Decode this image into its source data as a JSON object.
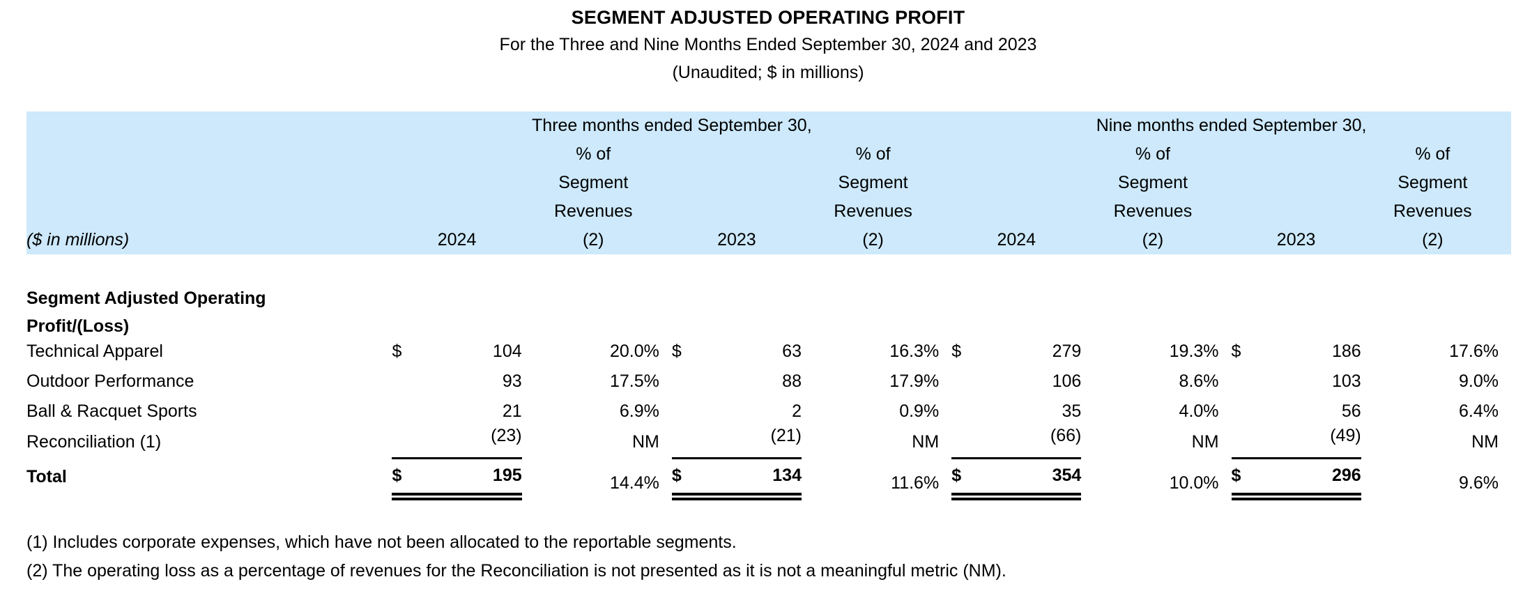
{
  "page": {
    "title": "SEGMENT ADJUSTED OPERATING PROFIT",
    "subtitle": "For the Three and Nine Months Ended September 30, 2024 and 2023",
    "note": "(Unaudited; $ in millions)"
  },
  "colors": {
    "header_band_bg": "#cde9fb",
    "text": "#000000"
  },
  "table": {
    "corner_label": "($ in millions)",
    "dollar_sign": "$",
    "group_headers": [
      "Three months ended September 30,",
      "Nine months ended September 30,"
    ],
    "pct_header_lines": [
      "% of",
      "Segment",
      "Revenues",
      "(2)"
    ],
    "year_headers": [
      "2024",
      "2023",
      "2024",
      "2023"
    ],
    "section_header_line1": "Segment Adjusted Operating",
    "section_header_line2": "Profit/(Loss)",
    "rows": [
      {
        "label": "Technical Apparel",
        "values": [
          "104",
          "20.0%",
          "63",
          "16.3%",
          "279",
          "19.3%",
          "186",
          "17.6%"
        ]
      },
      {
        "label": "Outdoor Performance",
        "values": [
          "93",
          "17.5%",
          "88",
          "17.9%",
          "106",
          "8.6%",
          "103",
          "9.0%"
        ]
      },
      {
        "label": "Ball & Racquet Sports",
        "values": [
          "21",
          "6.9%",
          "2",
          "0.9%",
          "35",
          "4.0%",
          "56",
          "6.4%"
        ]
      },
      {
        "label": "Reconciliation (1)",
        "values": [
          "(23)",
          "NM",
          "(21)",
          "NM",
          "(66)",
          "NM",
          "(49)",
          "NM"
        ]
      },
      {
        "label": "Total",
        "values": [
          "195",
          "14.4%",
          "134",
          "11.6%",
          "354",
          "10.0%",
          "296",
          "9.6%"
        ]
      }
    ],
    "footnotes": [
      "(1) Includes corporate expenses, which have not been allocated to the reportable segments.",
      "(2) The operating loss as a percentage of revenues for the Reconciliation is not presented as it is not a meaningful metric (NM)."
    ]
  }
}
